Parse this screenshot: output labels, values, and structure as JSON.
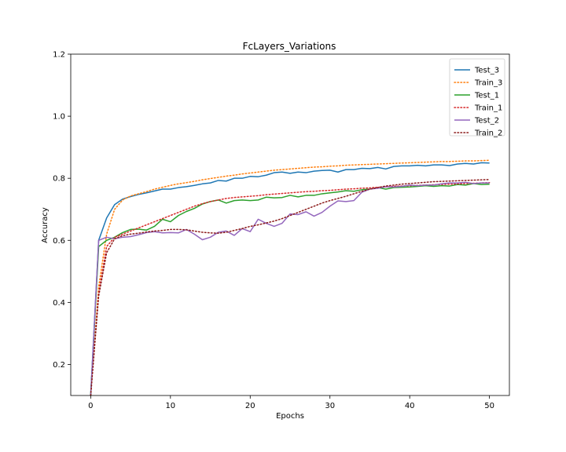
{
  "chart_data": {
    "type": "line",
    "title": "FcLayers_Variations",
    "xlabel": "Epochs",
    "ylabel": "Accuracy",
    "xlim": [
      -2.5,
      52.5
    ],
    "ylim": [
      0.1,
      1.2
    ],
    "xticks": [
      0,
      10,
      20,
      30,
      40,
      50
    ],
    "yticks": [
      0.2,
      0.4,
      0.6,
      0.8,
      1.0,
      1.2
    ],
    "ytick_labels": [
      "0.2",
      "0.4",
      "0.6",
      "0.8",
      "1.0",
      "1.2"
    ],
    "grid": false,
    "legend_position": "top-right",
    "x": [
      0,
      1,
      2,
      3,
      4,
      5,
      6,
      7,
      8,
      9,
      10,
      11,
      12,
      13,
      14,
      15,
      16,
      17,
      18,
      19,
      20,
      21,
      22,
      23,
      24,
      25,
      26,
      27,
      28,
      29,
      30,
      31,
      32,
      33,
      34,
      35,
      36,
      37,
      38,
      39,
      40,
      41,
      42,
      43,
      44,
      45,
      46,
      47,
      48,
      49,
      50
    ],
    "series": [
      {
        "name": "Test_3",
        "color": "#1f77b4",
        "style": "solid",
        "values": [
          0.1,
          0.6,
          0.672,
          0.715,
          0.733,
          0.741,
          0.748,
          0.753,
          0.759,
          0.765,
          0.765,
          0.77,
          0.773,
          0.777,
          0.782,
          0.785,
          0.793,
          0.791,
          0.8,
          0.8,
          0.806,
          0.805,
          0.81,
          0.818,
          0.82,
          0.816,
          0.82,
          0.818,
          0.823,
          0.825,
          0.826,
          0.82,
          0.828,
          0.828,
          0.832,
          0.831,
          0.835,
          0.83,
          0.838,
          0.84,
          0.84,
          0.842,
          0.84,
          0.843,
          0.843,
          0.841,
          0.846,
          0.848,
          0.846,
          0.85,
          0.849
        ]
      },
      {
        "name": "Train_3",
        "color": "#ff7f0e",
        "style": "dotted",
        "values": [
          0.1,
          0.45,
          0.62,
          0.7,
          0.73,
          0.743,
          0.75,
          0.757,
          0.765,
          0.771,
          0.777,
          0.782,
          0.786,
          0.79,
          0.795,
          0.799,
          0.803,
          0.807,
          0.81,
          0.814,
          0.817,
          0.82,
          0.823,
          0.826,
          0.828,
          0.83,
          0.832,
          0.834,
          0.836,
          0.837,
          0.839,
          0.84,
          0.842,
          0.843,
          0.844,
          0.845,
          0.846,
          0.847,
          0.848,
          0.849,
          0.85,
          0.851,
          0.852,
          0.853,
          0.854,
          0.854,
          0.855,
          0.856,
          0.856,
          0.857,
          0.858
        ]
      },
      {
        "name": "Test_1",
        "color": "#2ca02c",
        "style": "solid",
        "values": [
          0.1,
          0.58,
          0.6,
          0.61,
          0.625,
          0.635,
          0.636,
          0.633,
          0.645,
          0.668,
          0.66,
          0.68,
          0.693,
          0.703,
          0.717,
          0.725,
          0.73,
          0.72,
          0.728,
          0.73,
          0.728,
          0.73,
          0.739,
          0.737,
          0.738,
          0.745,
          0.74,
          0.745,
          0.745,
          0.75,
          0.753,
          0.756,
          0.76,
          0.758,
          0.763,
          0.765,
          0.77,
          0.765,
          0.77,
          0.771,
          0.772,
          0.774,
          0.776,
          0.774,
          0.776,
          0.775,
          0.78,
          0.778,
          0.783,
          0.78,
          0.781
        ]
      },
      {
        "name": "Train_1",
        "color": "#d62728",
        "style": "dotted",
        "values": [
          0.1,
          0.43,
          0.58,
          0.61,
          0.62,
          0.63,
          0.64,
          0.65,
          0.66,
          0.67,
          0.68,
          0.69,
          0.7,
          0.71,
          0.718,
          0.725,
          0.73,
          0.735,
          0.738,
          0.74,
          0.742,
          0.744,
          0.747,
          0.749,
          0.751,
          0.753,
          0.755,
          0.757,
          0.758,
          0.76,
          0.761,
          0.763,
          0.765,
          0.766,
          0.768,
          0.769,
          0.771,
          0.772,
          0.774,
          0.775,
          0.776,
          0.777,
          0.778,
          0.779,
          0.78,
          0.781,
          0.782,
          0.783,
          0.784,
          0.785,
          0.786
        ]
      },
      {
        "name": "Test_2",
        "color": "#9467bd",
        "style": "solid",
        "values": [
          0.1,
          0.6,
          0.61,
          0.605,
          0.61,
          0.612,
          0.618,
          0.625,
          0.628,
          0.624,
          0.625,
          0.624,
          0.635,
          0.62,
          0.602,
          0.61,
          0.626,
          0.63,
          0.616,
          0.638,
          0.628,
          0.668,
          0.655,
          0.645,
          0.655,
          0.685,
          0.683,
          0.692,
          0.678,
          0.69,
          0.71,
          0.727,
          0.725,
          0.728,
          0.755,
          0.765,
          0.768,
          0.773,
          0.772,
          0.774,
          0.778,
          0.776,
          0.778,
          0.778,
          0.782,
          0.785,
          0.785,
          0.787,
          0.783,
          0.785,
          0.785
        ]
      },
      {
        "name": "Train_2",
        "color": "#8c1c1c",
        "style": "dotted",
        "values": [
          0.1,
          0.42,
          0.56,
          0.605,
          0.615,
          0.62,
          0.623,
          0.627,
          0.63,
          0.632,
          0.635,
          0.635,
          0.634,
          0.63,
          0.626,
          0.624,
          0.623,
          0.626,
          0.632,
          0.638,
          0.645,
          0.65,
          0.656,
          0.662,
          0.67,
          0.68,
          0.69,
          0.7,
          0.71,
          0.72,
          0.728,
          0.735,
          0.742,
          0.75,
          0.758,
          0.765,
          0.77,
          0.775,
          0.778,
          0.781,
          0.783,
          0.785,
          0.787,
          0.789,
          0.79,
          0.791,
          0.792,
          0.793,
          0.794,
          0.795,
          0.796
        ]
      }
    ]
  }
}
